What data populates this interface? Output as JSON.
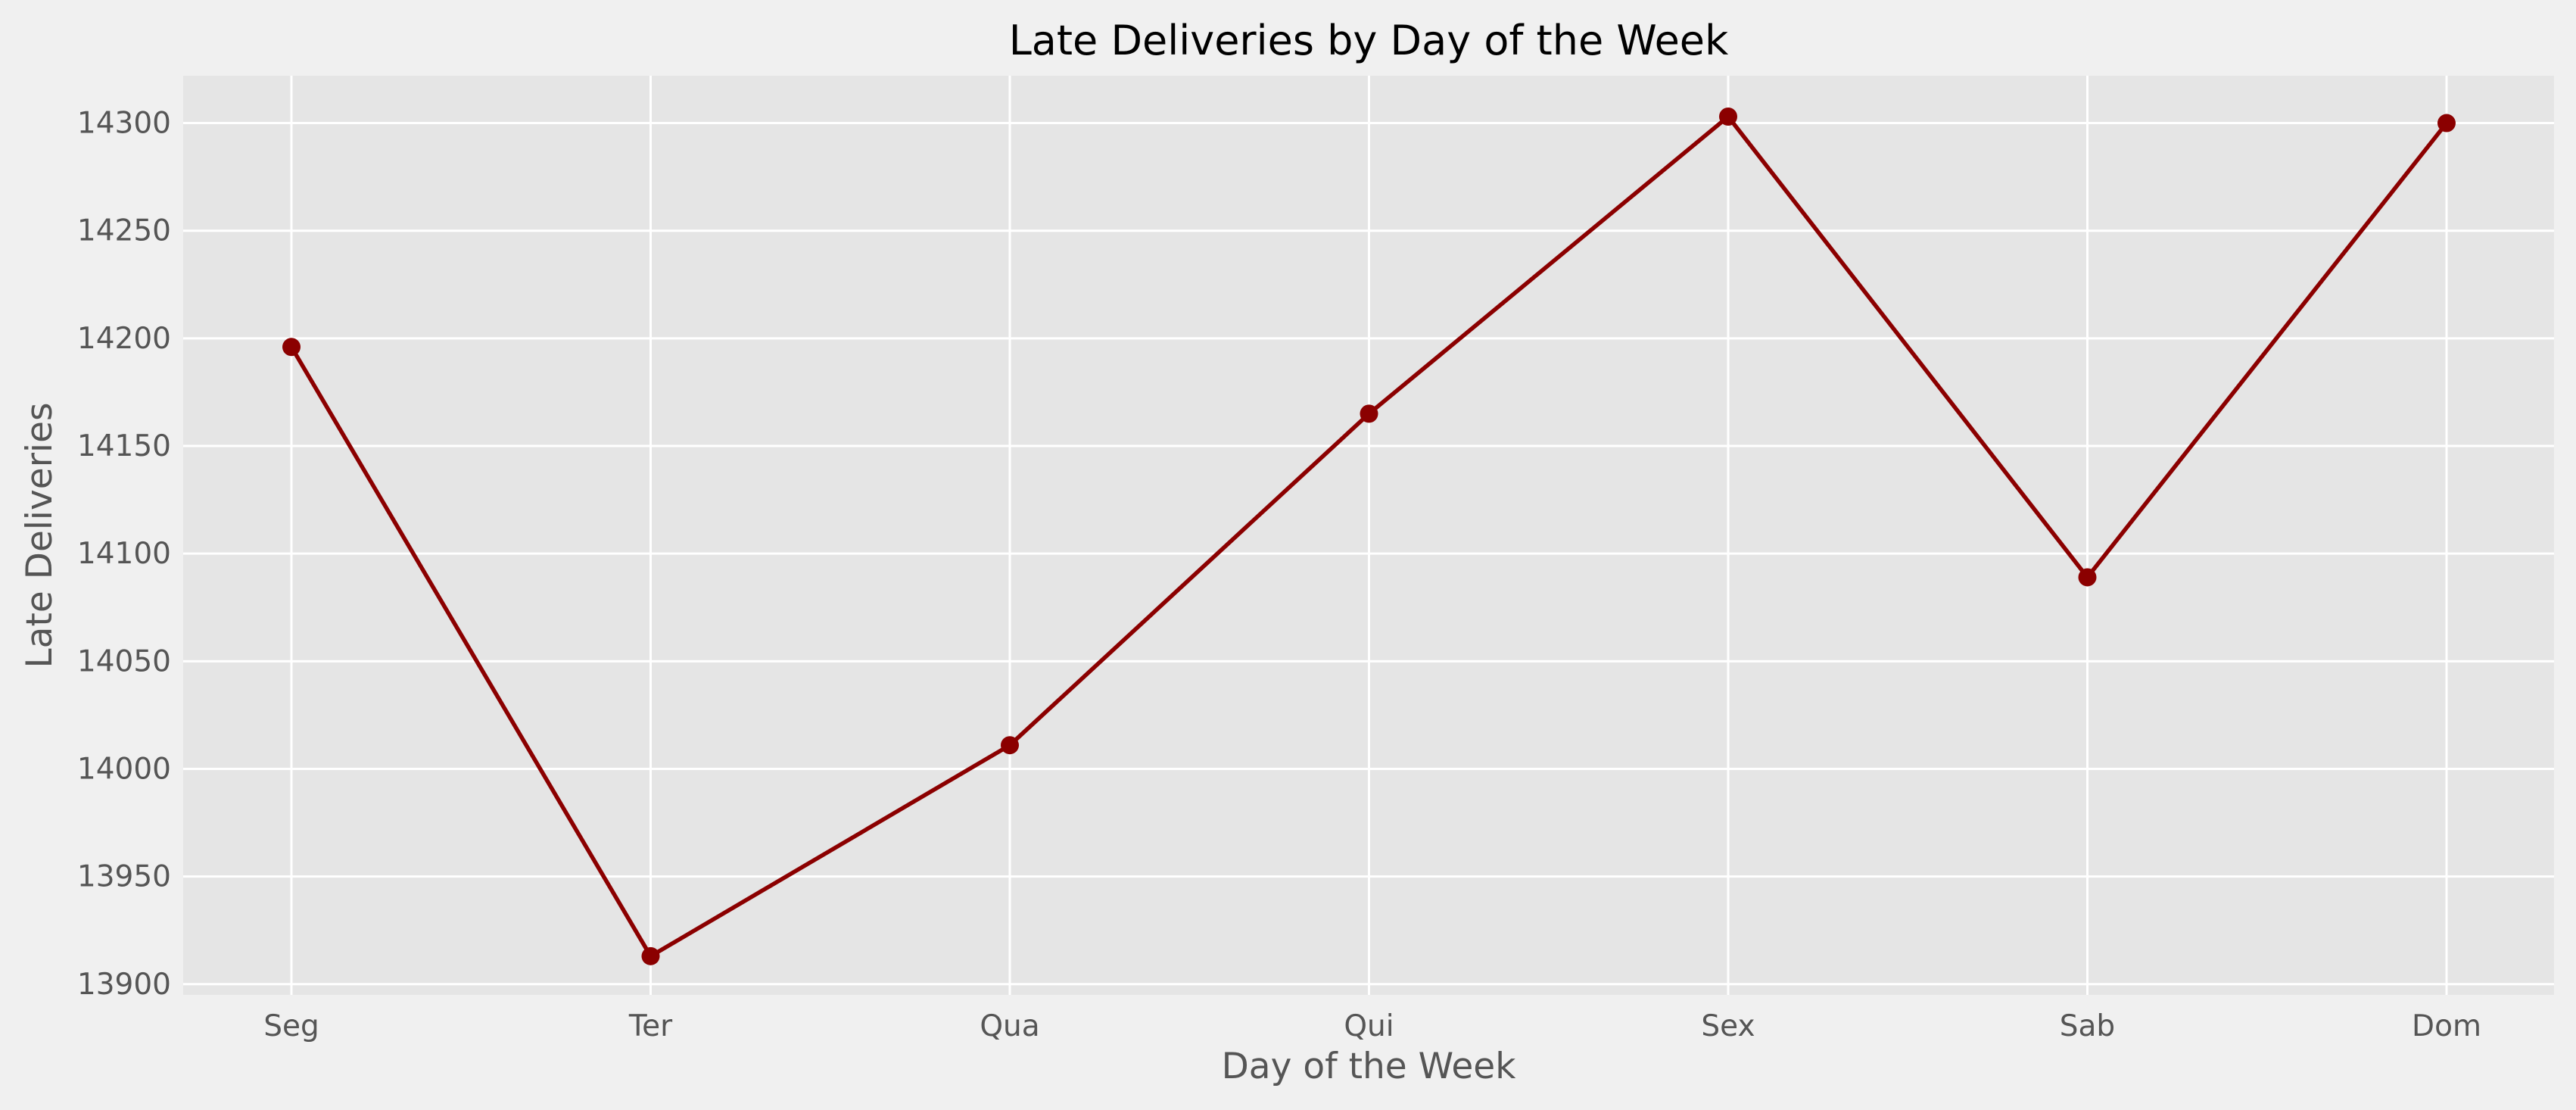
{
  "chart_data": {
    "type": "line",
    "title": "Late Deliveries by Day of the Week",
    "xlabel": "Day of the Week",
    "ylabel": "Late Deliveries",
    "categories": [
      "Seg",
      "Ter",
      "Qua",
      "Qui",
      "Sex",
      "Sab",
      "Dom"
    ],
    "series": [
      {
        "values": [
          14196,
          13913,
          14011,
          14165,
          14303,
          14089,
          14300
        ]
      }
    ],
    "ylim": [
      13895,
      14322
    ],
    "yticks": [
      13900,
      13950,
      14000,
      14050,
      14100,
      14150,
      14200,
      14250,
      14300
    ],
    "grid": true,
    "legend": "none",
    "colors": {
      "line": "#8b0000",
      "marker": "#8b0000",
      "plot_background": "#e5e5e5",
      "figure_background": "#f0f0f0",
      "grid": "#ffffff"
    }
  }
}
